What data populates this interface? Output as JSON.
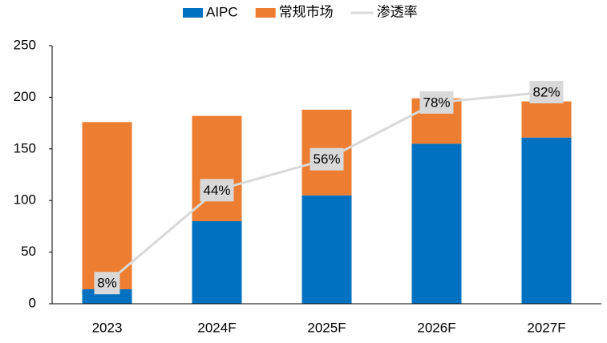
{
  "chart_data": {
    "type": "bar",
    "stacked": true,
    "categories": [
      "2023",
      "2024F",
      "2025F",
      "2026F",
      "2027F"
    ],
    "series": [
      {
        "name": "AIPC",
        "type": "bar",
        "color": "#0070c0",
        "values": [
          14,
          80,
          105,
          155,
          161
        ]
      },
      {
        "name": "常规市场",
        "type": "bar",
        "color": "#ed7d31",
        "values": [
          162,
          102,
          83,
          44,
          35
        ]
      },
      {
        "name": "渗透率",
        "type": "line",
        "axis": "y2",
        "color": "#d9d9d9",
        "values": [
          8,
          44,
          56,
          78,
          82
        ],
        "value_labels": [
          "8%",
          "44%",
          "56%",
          "78%",
          "82%"
        ]
      }
    ],
    "ylim": [
      0,
      250
    ],
    "yticks": [
      0,
      50,
      100,
      150,
      200,
      250
    ],
    "y2lim": [
      0,
      100
    ],
    "grid": false,
    "legend": "top"
  }
}
